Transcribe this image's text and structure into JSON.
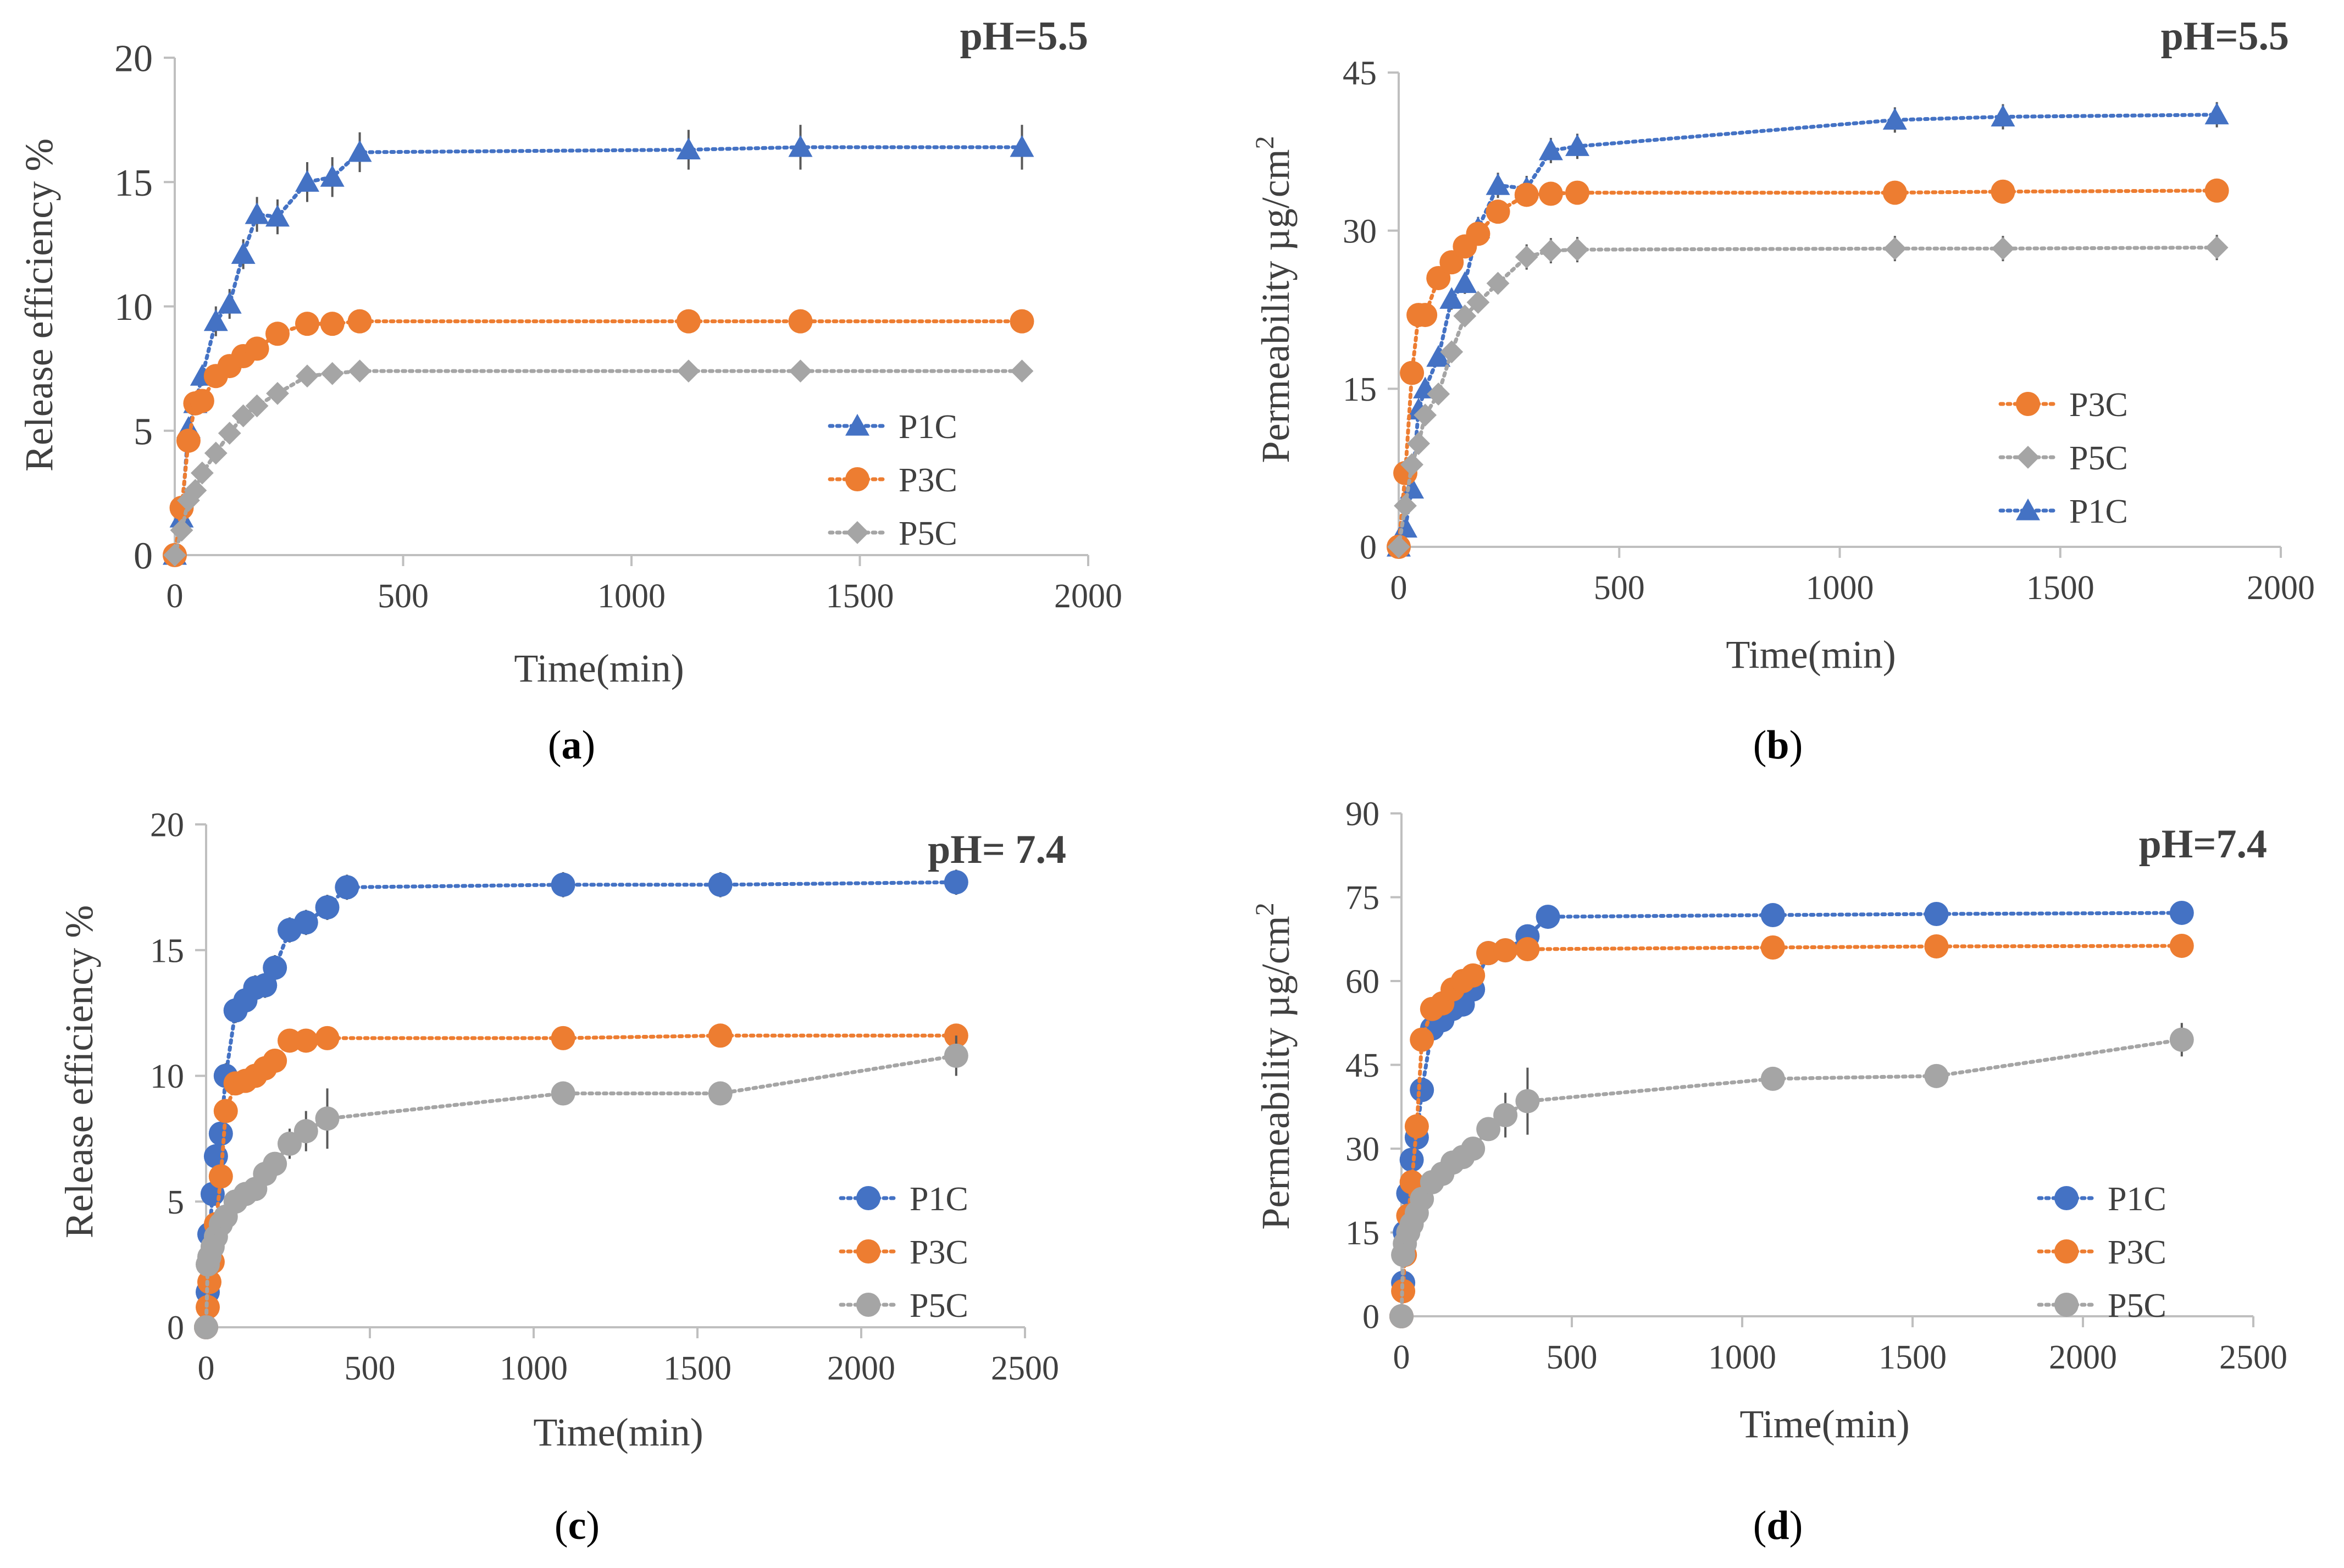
{
  "colors": {
    "P1C": "#4472C4",
    "P3C": "#ED7D31",
    "P5C": "#A5A5A5",
    "axis": "#BFBFBF",
    "text": "#404040"
  },
  "chart_data": [
    {
      "type": "line",
      "panel": "a",
      "caption": "(a)",
      "caption_letter": "a",
      "title": "pH=5.5",
      "xlabel": "Time(min)",
      "ylabel": "Release efficiency %",
      "xlim": [
        0,
        2000
      ],
      "ylim": [
        0,
        20
      ],
      "xticks": [
        0,
        500,
        1000,
        1500,
        2000
      ],
      "yticks": [
        0,
        5,
        10,
        15,
        20
      ],
      "grid": false,
      "legend_position": "bottom-right",
      "legend_order": [
        "P1C",
        "P3C",
        "P5C"
      ],
      "series": [
        {
          "name": "P1C",
          "marker": "triangle",
          "x": [
            0,
            15,
            30,
            45,
            60,
            90,
            120,
            150,
            180,
            225,
            290,
            345,
            405,
            1125,
            1370,
            1855
          ],
          "y": [
            0,
            1.5,
            5.1,
            6.1,
            7.2,
            9.4,
            10.1,
            12.1,
            13.7,
            13.6,
            15.0,
            15.2,
            16.2,
            16.3,
            16.4,
            16.4
          ],
          "err": [
            0,
            0.2,
            0.3,
            0.3,
            0.4,
            0.6,
            0.6,
            0.6,
            0.7,
            0.7,
            0.8,
            0.8,
            0.8,
            0.8,
            0.9,
            0.9
          ]
        },
        {
          "name": "P3C",
          "marker": "circle",
          "x": [
            0,
            15,
            30,
            45,
            60,
            90,
            120,
            150,
            180,
            225,
            290,
            345,
            405,
            1125,
            1370,
            1855
          ],
          "y": [
            0,
            1.9,
            4.6,
            6.1,
            6.2,
            7.2,
            7.6,
            8.0,
            8.3,
            8.9,
            9.3,
            9.3,
            9.4,
            9.4,
            9.4,
            9.4
          ],
          "err": [
            0,
            0.1,
            0.3,
            0.3,
            0.3,
            0.3,
            0.3,
            0.3,
            0.3,
            0.3,
            0.4,
            0.4,
            0.4,
            0.4,
            0.4,
            0.4
          ]
        },
        {
          "name": "P5C",
          "marker": "diamond",
          "x": [
            0,
            15,
            30,
            45,
            60,
            90,
            120,
            150,
            180,
            225,
            290,
            345,
            405,
            1125,
            1370,
            1855
          ],
          "y": [
            0,
            1.0,
            2.2,
            2.6,
            3.3,
            4.1,
            4.9,
            5.6,
            6.0,
            6.5,
            7.2,
            7.3,
            7.4,
            7.4,
            7.4,
            7.4
          ],
          "err": [
            0,
            0.1,
            0.2,
            0.2,
            0.2,
            0.2,
            0.3,
            0.3,
            0.3,
            0.3,
            0.3,
            0.3,
            0.3,
            0.3,
            0.3,
            0.3
          ]
        }
      ]
    },
    {
      "type": "line",
      "panel": "b",
      "caption": "(b)",
      "caption_letter": "b",
      "title": "pH=5.5",
      "xlabel": "Time(min)",
      "ylabel": "Permeability µg/cm",
      "ylabel_sup": "2",
      "xlim": [
        0,
        2000
      ],
      "ylim": [
        0,
        45
      ],
      "xticks": [
        0,
        500,
        1000,
        1500,
        2000
      ],
      "yticks": [
        0,
        15,
        30,
        45
      ],
      "grid": false,
      "legend_position": "bottom-right",
      "legend_order": [
        "P3C",
        "P5C",
        "P1C"
      ],
      "series": [
        {
          "name": "P1C",
          "marker": "triangle",
          "x": [
            0,
            15,
            30,
            45,
            60,
            90,
            120,
            150,
            180,
            225,
            290,
            345,
            405,
            1125,
            1370,
            1855
          ],
          "y": [
            0,
            1.8,
            5.5,
            13.0,
            15.0,
            18.0,
            23.5,
            25.0,
            30.2,
            34.3,
            34.0,
            37.6,
            38.0,
            40.5,
            40.8,
            41.0
          ],
          "err": [
            0,
            0.3,
            0.5,
            0.8,
            0.8,
            0.9,
            1.0,
            1.0,
            1.1,
            1.2,
            1.2,
            1.2,
            1.2,
            1.2,
            1.2,
            1.2
          ]
        },
        {
          "name": "P3C",
          "marker": "circle",
          "x": [
            0,
            15,
            30,
            45,
            60,
            90,
            120,
            150,
            180,
            225,
            290,
            345,
            405,
            1125,
            1370,
            1855
          ],
          "y": [
            0,
            7.0,
            16.5,
            22.0,
            22.0,
            25.5,
            27.0,
            28.5,
            29.7,
            31.8,
            33.4,
            33.5,
            33.6,
            33.6,
            33.7,
            33.8
          ],
          "err": [
            0,
            0.4,
            0.6,
            0.7,
            0.7,
            0.7,
            0.8,
            0.8,
            0.8,
            0.8,
            0.8,
            0.8,
            0.8,
            0.8,
            0.8,
            0.8
          ]
        },
        {
          "name": "P5C",
          "marker": "diamond",
          "x": [
            0,
            15,
            30,
            45,
            60,
            90,
            120,
            150,
            180,
            225,
            290,
            345,
            405,
            1125,
            1370,
            1855
          ],
          "y": [
            0,
            3.9,
            7.8,
            9.8,
            12.5,
            14.5,
            18.5,
            21.9,
            23.2,
            25.0,
            27.5,
            28.1,
            28.2,
            28.3,
            28.3,
            28.4
          ],
          "err": [
            0,
            0.3,
            0.4,
            0.5,
            0.6,
            0.7,
            0.7,
            0.8,
            0.9,
            1.0,
            1.2,
            1.2,
            1.2,
            1.2,
            1.2,
            1.2
          ]
        }
      ]
    },
    {
      "type": "line",
      "panel": "c",
      "caption": "(c)",
      "caption_letter": "c",
      "title": "pH= 7.4",
      "title_bold_dark": true,
      "xlabel": "Time(min)",
      "ylabel": "Release efficiency %",
      "xlim": [
        0,
        2500
      ],
      "ylim": [
        0,
        20
      ],
      "xticks": [
        0,
        500,
        1000,
        1500,
        2000,
        2500
      ],
      "yticks": [
        0,
        5,
        10,
        15,
        20
      ],
      "grid": false,
      "legend_position": "bottom-right",
      "legend_order": [
        "P1C",
        "P3C",
        "P5C"
      ],
      "series": [
        {
          "name": "P1C",
          "marker": "circle",
          "x": [
            0,
            5,
            10,
            20,
            30,
            45,
            60,
            90,
            120,
            150,
            180,
            210,
            255,
            305,
            370,
            430,
            1090,
            1570,
            2290
          ],
          "y": [
            0,
            1.4,
            3.7,
            5.3,
            6.8,
            7.7,
            10.0,
            12.6,
            13.0,
            13.5,
            13.6,
            14.3,
            15.8,
            16.1,
            16.7,
            17.5,
            17.6,
            17.6,
            17.7
          ],
          "err": [
            0,
            0.2,
            0.3,
            0.3,
            0.4,
            0.4,
            0.5,
            0.5,
            0.5,
            0.5,
            0.5,
            0.5,
            0.5,
            0.5,
            0.5,
            0.5,
            0.5,
            0.5,
            0.5
          ]
        },
        {
          "name": "P3C",
          "marker": "circle",
          "x": [
            0,
            5,
            10,
            20,
            30,
            45,
            60,
            90,
            120,
            150,
            180,
            210,
            255,
            305,
            370,
            1090,
            1570,
            2290
          ],
          "y": [
            0,
            0.8,
            1.8,
            2.6,
            4.1,
            6.0,
            8.6,
            9.7,
            9.8,
            10.0,
            10.3,
            10.6,
            11.4,
            11.4,
            11.5,
            11.5,
            11.6,
            11.6
          ],
          "err": [
            0,
            0.1,
            0.2,
            0.2,
            0.3,
            0.3,
            0.3,
            0.3,
            0.3,
            0.3,
            0.3,
            0.3,
            0.3,
            0.3,
            0.3,
            0.3,
            0.3,
            0.3
          ]
        },
        {
          "name": "P5C",
          "marker": "circle",
          "x": [
            0,
            5,
            10,
            20,
            30,
            45,
            60,
            90,
            120,
            150,
            180,
            210,
            255,
            305,
            370,
            1090,
            1570,
            2290
          ],
          "y": [
            0,
            2.5,
            2.8,
            3.2,
            3.6,
            4.1,
            4.4,
            5.0,
            5.3,
            5.5,
            6.1,
            6.5,
            7.3,
            7.8,
            8.3,
            9.3,
            9.3,
            10.8
          ],
          "err": [
            0,
            0.2,
            0.2,
            0.3,
            0.3,
            0.3,
            0.3,
            0.3,
            0.3,
            0.3,
            0.4,
            0.4,
            0.6,
            0.8,
            1.2,
            0.4,
            0.4,
            0.8
          ]
        }
      ]
    },
    {
      "type": "line",
      "panel": "d",
      "caption": "(d)",
      "caption_letter": "d",
      "title": "pH=7.4",
      "xlabel": "Time(min)",
      "ylabel": "Permeability µg/cm",
      "ylabel_sup": "2",
      "xlim": [
        0,
        2500
      ],
      "ylim": [
        0,
        90
      ],
      "xticks": [
        0,
        500,
        1000,
        1500,
        2000,
        2500
      ],
      "yticks": [
        0,
        15,
        30,
        45,
        60,
        75,
        90
      ],
      "grid": false,
      "legend_position": "bottom-right",
      "legend_order": [
        "P1C",
        "P3C",
        "P5C"
      ],
      "series": [
        {
          "name": "P1C",
          "marker": "circle",
          "x": [
            0,
            5,
            10,
            20,
            30,
            45,
            60,
            90,
            120,
            150,
            180,
            210,
            255,
            305,
            370,
            430,
            1090,
            1570,
            2290
          ],
          "y": [
            0,
            6.0,
            15.0,
            22.0,
            28.0,
            32.0,
            40.5,
            51.5,
            53.0,
            55.0,
            55.8,
            58.5,
            65.0,
            65.5,
            68.0,
            71.5,
            71.8,
            72.0,
            72.2
          ],
          "err": [
            0,
            1.0,
            1.5,
            1.5,
            1.5,
            2.0,
            2.0,
            2.0,
            2.0,
            2.0,
            2.0,
            2.0,
            2.0,
            2.0,
            2.0,
            2.0,
            2.0,
            2.0,
            2.0
          ]
        },
        {
          "name": "P3C",
          "marker": "circle",
          "x": [
            0,
            5,
            10,
            20,
            30,
            45,
            60,
            90,
            120,
            150,
            180,
            210,
            255,
            305,
            370,
            1090,
            1570,
            2290
          ],
          "y": [
            0,
            4.5,
            11.0,
            18.0,
            24.0,
            34.0,
            49.5,
            55.0,
            56.0,
            58.5,
            60.0,
            61.0,
            65.0,
            65.5,
            65.7,
            66.0,
            66.2,
            66.3
          ],
          "err": [
            0,
            1.0,
            1.5,
            1.5,
            1.5,
            1.5,
            2.0,
            2.0,
            2.0,
            2.0,
            2.0,
            2.0,
            2.0,
            2.0,
            2.0,
            2.0,
            2.0,
            2.0
          ]
        },
        {
          "name": "P5C",
          "marker": "circle",
          "x": [
            0,
            5,
            10,
            20,
            30,
            45,
            60,
            90,
            120,
            150,
            180,
            210,
            255,
            305,
            370,
            1090,
            1570,
            2290
          ],
          "y": [
            0,
            11.0,
            13.0,
            15.0,
            16.5,
            18.5,
            21.0,
            24.0,
            25.5,
            27.5,
            28.5,
            30.0,
            33.5,
            36.0,
            38.5,
            42.5,
            43.0,
            49.5
          ],
          "err": [
            0,
            1.0,
            1.0,
            1.0,
            1.0,
            1.0,
            1.5,
            1.5,
            1.5,
            1.5,
            1.5,
            1.5,
            2.0,
            4.0,
            6.0,
            2.0,
            2.0,
            3.0
          ]
        }
      ]
    }
  ]
}
